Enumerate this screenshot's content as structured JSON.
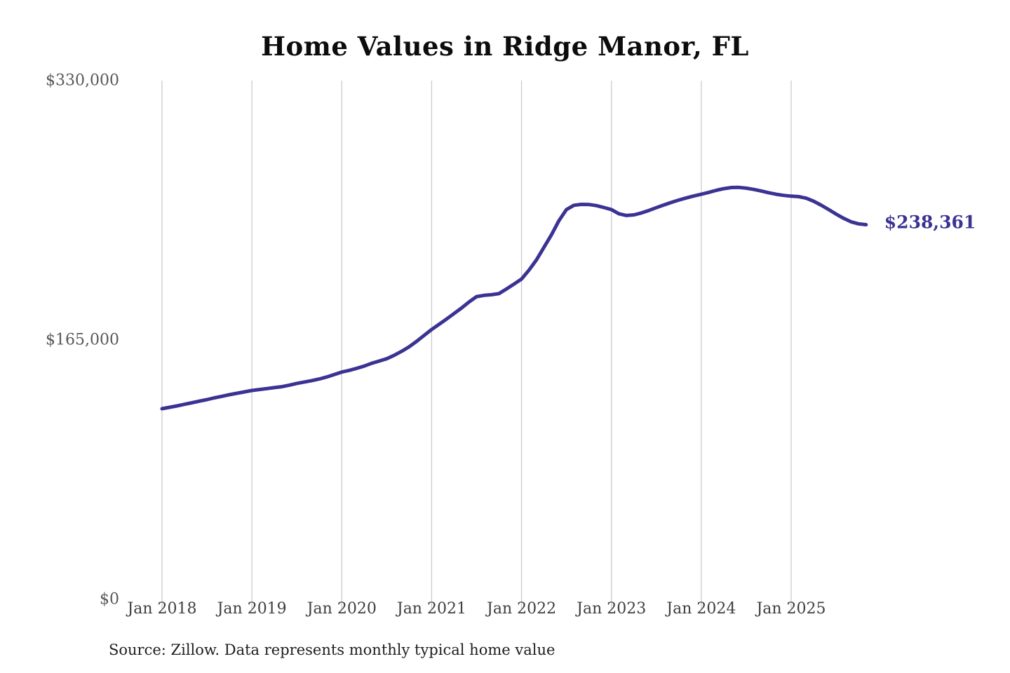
{
  "title": "Home Values in Ridge Manor, FL",
  "source_note": "Source: Zillow. Data represents monthly typical home value",
  "end_label": "$238,361",
  "colors": {
    "line": "#3b3393",
    "gridline": "#cbcbcb",
    "y_tick_text": "#585858",
    "x_tick_text": "#3f3f3f",
    "title_text": "#0c0c0c",
    "source_text": "#1e1e1e",
    "background": "#ffffff"
  },
  "chart_data": {
    "type": "line",
    "title": "Home Values in Ridge Manor, FL",
    "xlabel": "",
    "ylabel": "",
    "ylim": [
      0,
      330000
    ],
    "y_ticks": [
      0,
      165000,
      330000
    ],
    "y_tick_labels": [
      "$0",
      "$165,000",
      "$330,000"
    ],
    "x_tick_labels": [
      "Jan 2018",
      "Jan 2019",
      "Jan 2020",
      "Jan 2021",
      "Jan 2022",
      "Jan 2023",
      "Jan 2024",
      "Jan 2025"
    ],
    "grid": "vertical-only",
    "legend": "none",
    "frequency": "monthly",
    "start_month": "2018-01",
    "end_month": "2025-11",
    "final_value": 238361,
    "series": [
      {
        "name": "Typical home value",
        "values": [
          121300,
          122200,
          123100,
          124100,
          125100,
          126100,
          127100,
          128200,
          129200,
          130200,
          131100,
          132000,
          132900,
          133500,
          134100,
          134700,
          135300,
          136300,
          137400,
          138300,
          139200,
          140200,
          141500,
          143000,
          144600,
          145700,
          147000,
          148400,
          150200,
          151600,
          153100,
          155300,
          157800,
          160700,
          164200,
          168000,
          171700,
          175000,
          178400,
          181900,
          185400,
          189200,
          192600,
          193400,
          193800,
          194500,
          197500,
          200600,
          203800,
          209500,
          216000,
          224000,
          232000,
          241000,
          248000,
          250700,
          251300,
          251200,
          250500,
          249300,
          248000,
          245300,
          244200,
          244600,
          245800,
          247400,
          249200,
          250900,
          252500,
          254000,
          255400,
          256600,
          257700,
          258900,
          260200,
          261300,
          262000,
          262100,
          261600,
          260800,
          259800,
          258700,
          257700,
          257000,
          256500,
          256200,
          255200,
          253300,
          250800,
          248000,
          245100,
          242400,
          240200,
          238900,
          238361
        ]
      }
    ]
  }
}
